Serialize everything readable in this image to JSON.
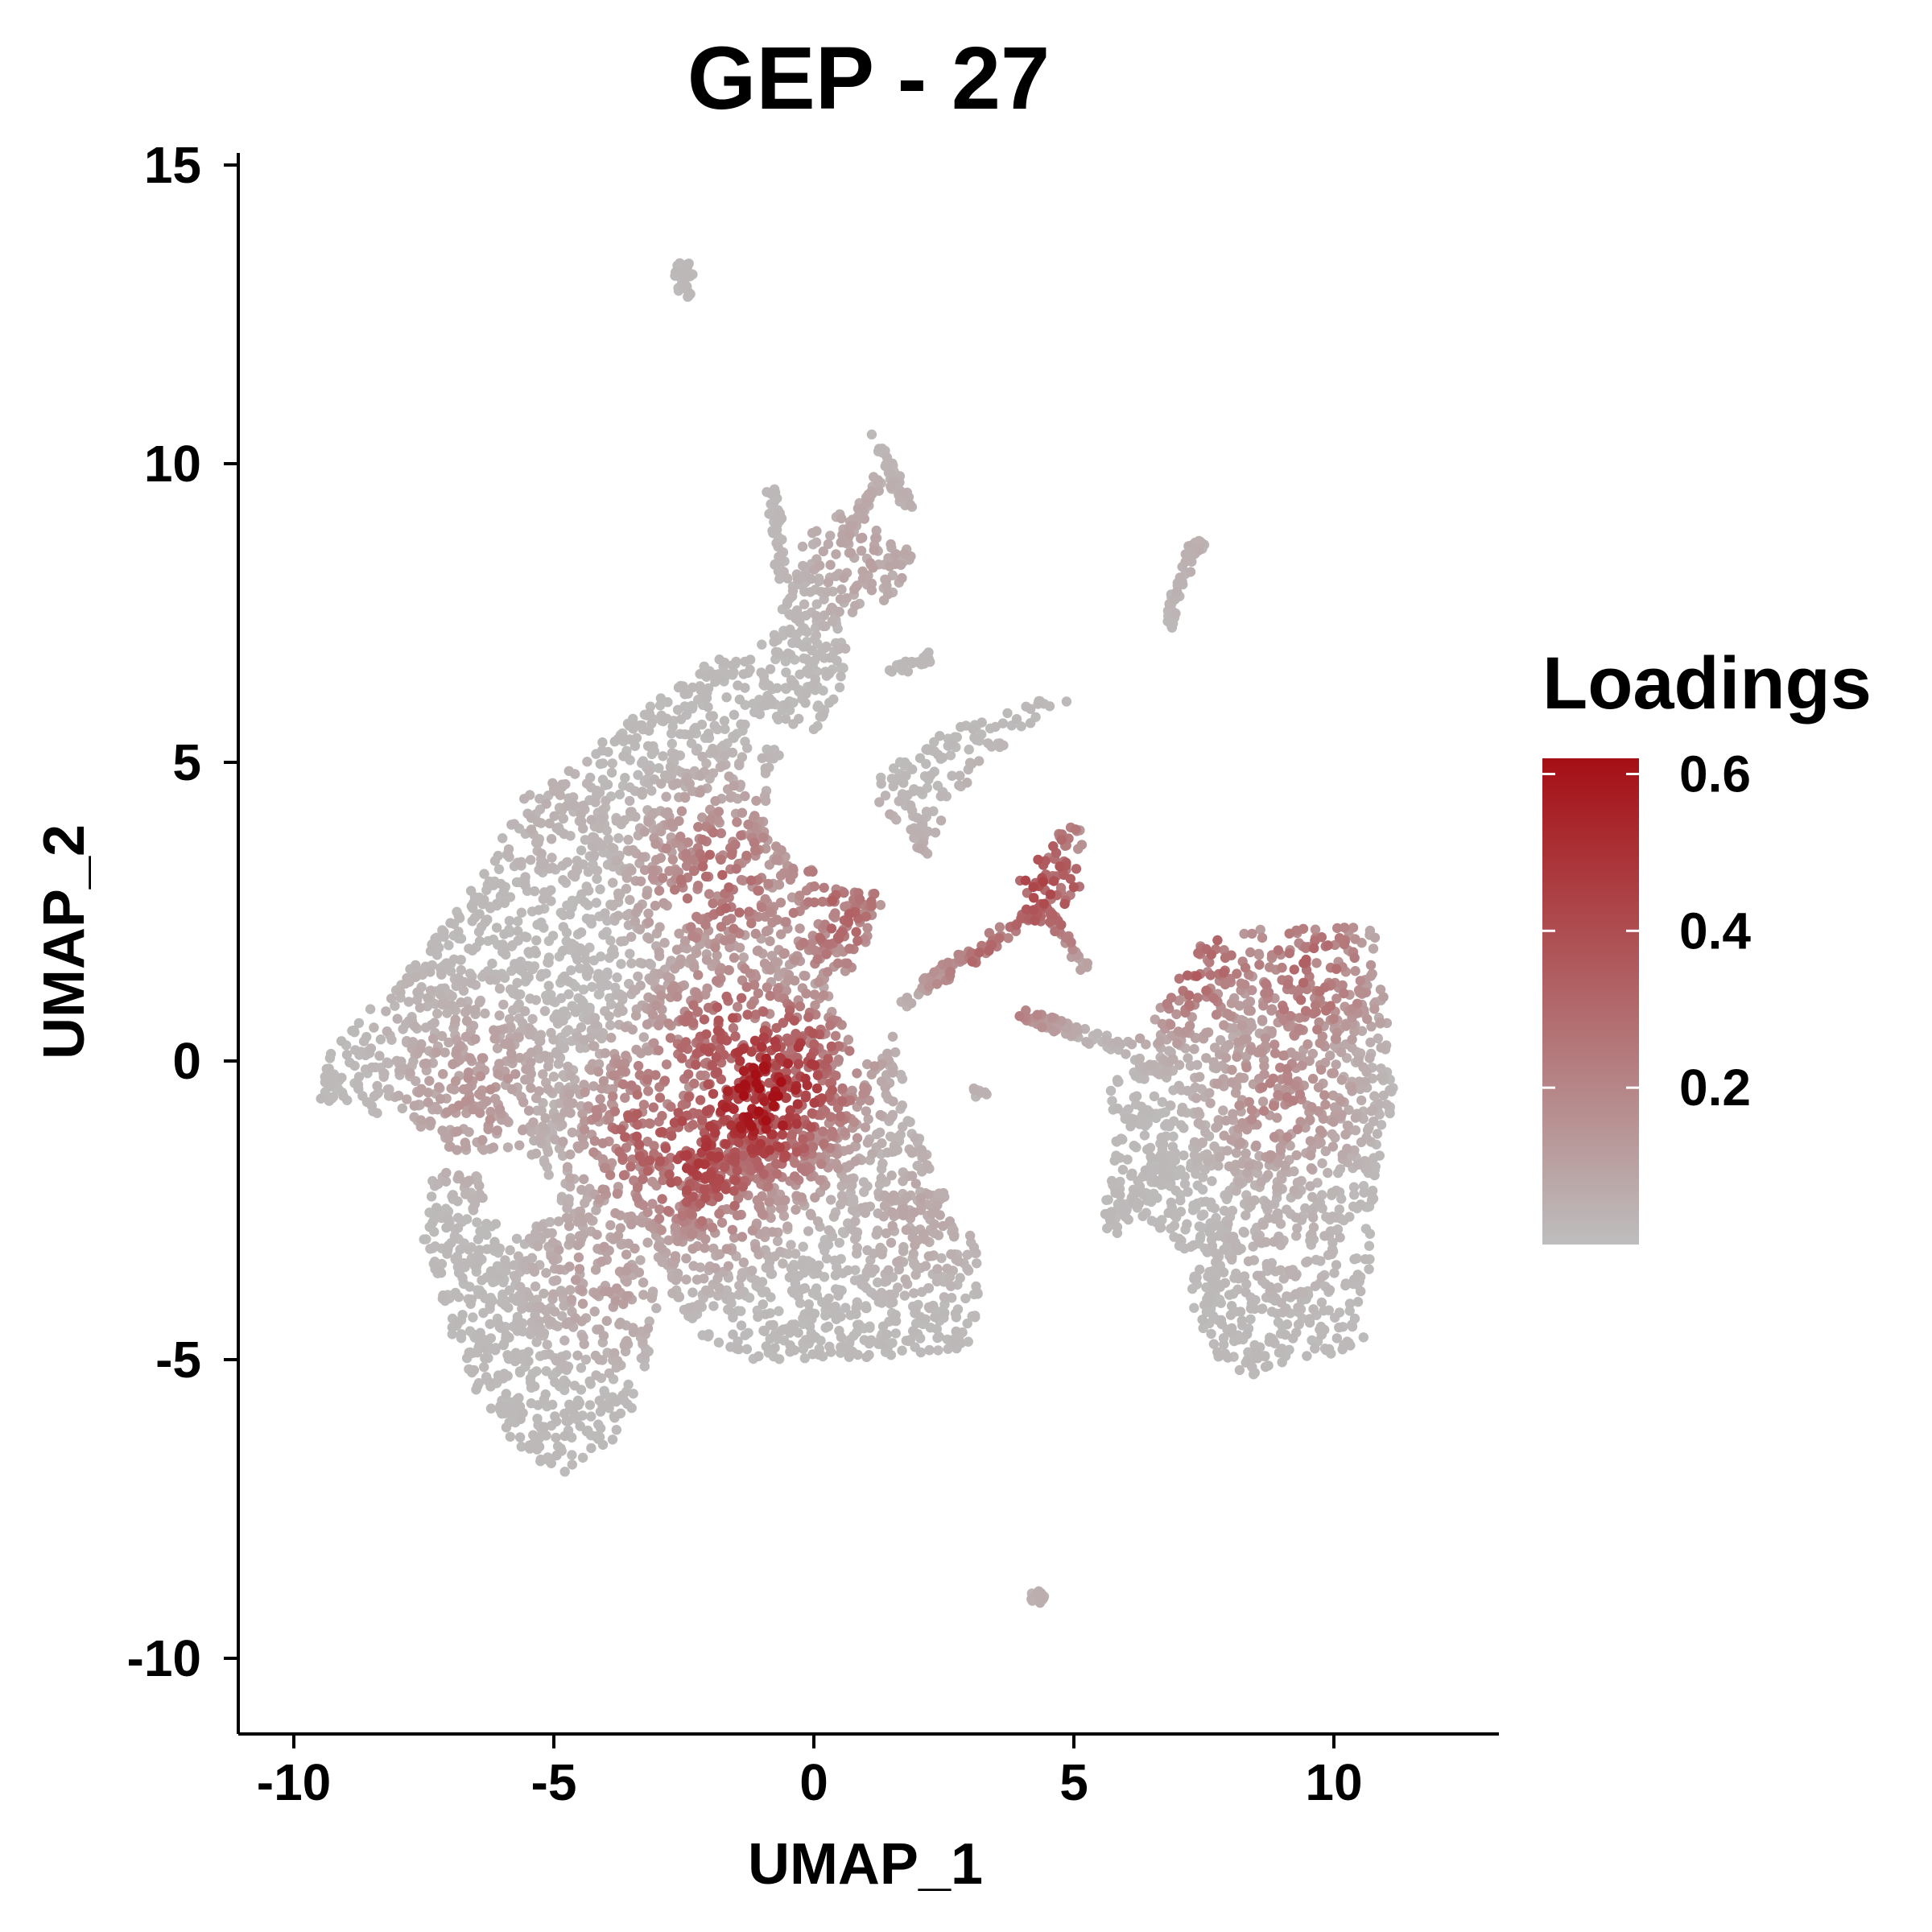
{
  "chart_data": {
    "type": "scatter",
    "title": "GEP - 27",
    "xlabel": "UMAP_1",
    "ylabel": "UMAP_2",
    "xlim": [
      -11,
      13.2
    ],
    "ylim": [
      -11.2,
      15.2
    ],
    "x_ticks": [
      -10,
      -5,
      0,
      5,
      10
    ],
    "x_tick_labels": [
      "-10",
      "-5",
      "0",
      "5",
      "10"
    ],
    "y_ticks": [
      -10,
      -5,
      0,
      5,
      10,
      15
    ],
    "y_tick_labels": [
      "-10",
      "-5",
      "0",
      "5",
      "10",
      "15"
    ],
    "grid": false,
    "legend": {
      "title": "Loadings",
      "placement": "right",
      "range": [
        0,
        0.62
      ],
      "ticks": [
        0.2,
        0.4,
        0.6
      ],
      "tick_labels": [
        "0.2",
        "0.4",
        "0.6"
      ],
      "low_color": "#bebebe",
      "high_color": "#a50f15"
    },
    "colors": {
      "low": "#bebebe",
      "high": "#a50f15"
    },
    "series": [
      {
        "values": [
          {
            "x": -1.0,
            "y": -0.6,
            "v": 0.6
          },
          {
            "x": -0.6,
            "y": -0.3,
            "v": 0.5
          },
          {
            "x": -2.1,
            "y": -1.5,
            "v": 0.45
          },
          {
            "x": -1.6,
            "y": 0.2,
            "v": 0.4
          },
          {
            "x": -3.0,
            "y": -1.2,
            "v": 0.35
          },
          {
            "x": 0.5,
            "y": 2.5,
            "v": 0.3
          },
          {
            "x": -1.8,
            "y": 3.0,
            "v": 0.3
          },
          {
            "x": 4.3,
            "y": 3.0,
            "v": 0.4
          },
          {
            "x": 3.5,
            "y": 1.5,
            "v": 0.3
          },
          {
            "x": 7.3,
            "y": 1.9,
            "v": 0.35
          },
          {
            "x": 9.5,
            "y": 1.5,
            "v": 0.3
          },
          {
            "x": 9.0,
            "y": -0.5,
            "v": 0.2
          },
          {
            "x": -6.5,
            "y": -0.5,
            "v": 0.15
          },
          {
            "x": -4.0,
            "y": -3.5,
            "v": 0.12
          },
          {
            "x": 2.0,
            "y": -2.5,
            "v": 0.08
          },
          {
            "x": -7.5,
            "y": 0.5,
            "v": 0.05
          },
          {
            "x": -5.0,
            "y": 4.0,
            "v": 0.05
          },
          {
            "x": 1.0,
            "y": 8.5,
            "v": 0.1
          },
          {
            "x": 9.0,
            "y": -3.0,
            "v": 0.05
          },
          {
            "x": -2.5,
            "y": 13.0,
            "v": 0.0
          },
          {
            "x": 4.3,
            "y": -9.0,
            "v": 0.05
          },
          {
            "x": 7.3,
            "y": 8.5,
            "v": 0.05
          }
        ]
      }
    ]
  }
}
